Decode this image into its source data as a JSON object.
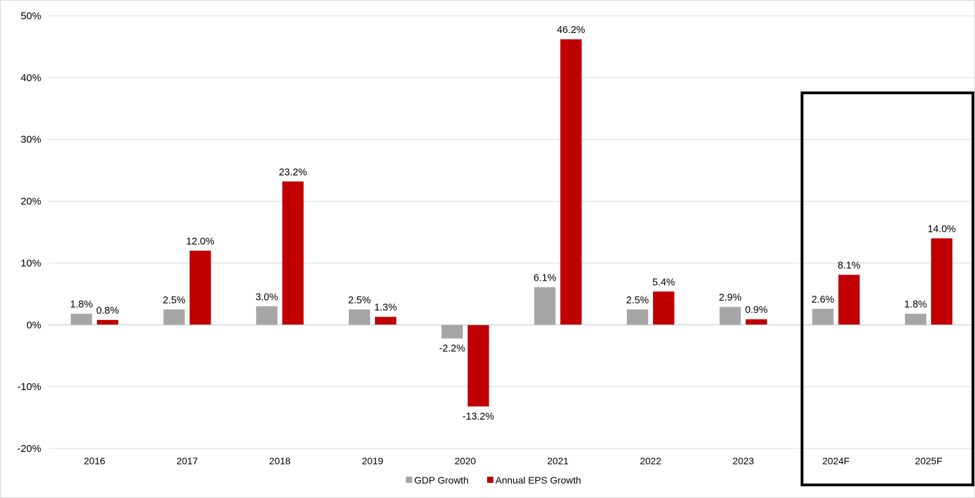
{
  "chart_data": {
    "type": "bar",
    "categories": [
      "2016",
      "2017",
      "2018",
      "2019",
      "2020",
      "2021",
      "2022",
      "2023",
      "2024F",
      "2025F"
    ],
    "series": [
      {
        "name": "GDP Growth",
        "color": "#A6A6A6",
        "values": [
          1.8,
          2.5,
          3.0,
          2.5,
          -2.2,
          6.1,
          2.5,
          2.9,
          2.6,
          1.8
        ],
        "labels": [
          "1.8%",
          "2.5%",
          "3.0%",
          "2.5%",
          "-2.2%",
          "6.1%",
          "2.5%",
          "2.9%",
          "2.6%",
          "1.8%"
        ]
      },
      {
        "name": "Annual EPS Growth",
        "color": "#C00000",
        "values": [
          0.8,
          12.0,
          23.2,
          1.3,
          -13.2,
          46.2,
          5.4,
          0.9,
          8.1,
          14.0
        ],
        "labels": [
          "0.8%",
          "12.0%",
          "23.2%",
          "1.3%",
          "-13.2%",
          "46.2%",
          "5.4%",
          "0.9%",
          "8.1%",
          "14.0%"
        ]
      }
    ],
    "ylim": [
      -20,
      50
    ],
    "yticks": [
      -20,
      -10,
      0,
      10,
      20,
      30,
      40,
      50
    ],
    "ytick_labels": [
      "-20%",
      "-10%",
      "0%",
      "10%",
      "20%",
      "30%",
      "40%",
      "50%"
    ],
    "grid": true,
    "legend_position": "bottom",
    "highlight": {
      "categories": [
        "2024F",
        "2025F"
      ],
      "style": "black box outline"
    },
    "title": "",
    "xlabel": "",
    "ylabel": ""
  }
}
